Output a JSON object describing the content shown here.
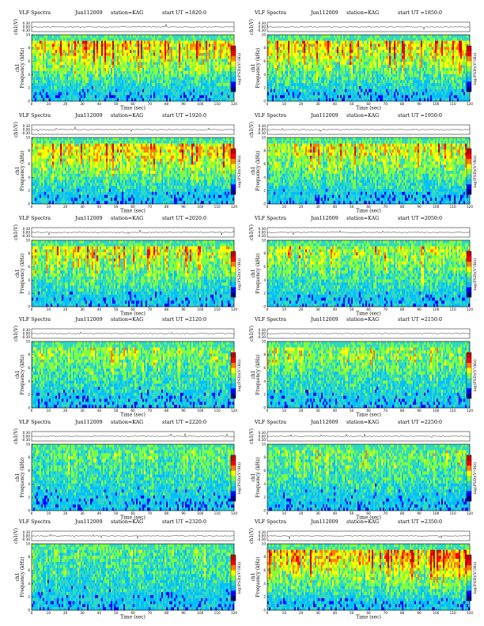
{
  "figure": {
    "title_text": "VLF Spectra",
    "station_text": "station=KAG",
    "start_prefix": "start  UT  =",
    "xlabel": "Time  (sec)",
    "ylabel_channel": "ch1",
    "ylabel_frequency": "Frequency  (kHz)",
    "ylabel_amplitude": "ch1(V)",
    "colorbar_label": "log(PSD)(V²/Hz)",
    "amp_ticks": [
      "0.30",
      "0.00",
      "-0.30"
    ],
    "freq_ticks": [
      "0",
      "2",
      "4",
      "6",
      "8",
      "10"
    ],
    "time_ticks": [
      "0",
      "10",
      "20",
      "30",
      "40",
      "50",
      "60",
      "70",
      "80",
      "90",
      "100",
      "110",
      "120"
    ],
    "colormap": [
      "#000080",
      "#0000ff",
      "#00bfff",
      "#30d8c0",
      "#7fff40",
      "#ffff00",
      "#ff8000",
      "#ff0000",
      "#c00000"
    ],
    "background_band_color": "#00ccff"
  },
  "chart_data": [
    {
      "type": "heatmap",
      "title": "VLF Spectra",
      "date": "Jun112009",
      "station": "KAG",
      "start_ut": "1820:0",
      "xlabel": "Time (sec)",
      "ylabel": "Frequency (kHz)",
      "xlim": [
        0,
        120
      ],
      "ylim": [
        0,
        10
      ],
      "amp_ylim": [
        -0.3,
        0.3
      ],
      "activity_level": 0.72
    },
    {
      "type": "heatmap",
      "title": "VLF Spectra",
      "date": "Jun112009",
      "station": "KAG",
      "start_ut": "1850:0",
      "xlabel": "Time (sec)",
      "ylabel": "Frequency (kHz)",
      "xlim": [
        0,
        120
      ],
      "ylim": [
        0,
        10
      ],
      "amp_ylim": [
        -0.3,
        0.3
      ],
      "activity_level": 0.7
    },
    {
      "type": "heatmap",
      "title": "VLF Spectra",
      "date": "Jun112009",
      "station": "KAG",
      "start_ut": "1920:0",
      "xlabel": "Time (sec)",
      "ylabel": "Frequency (kHz)",
      "xlim": [
        0,
        120
      ],
      "ylim": [
        0,
        10
      ],
      "amp_ylim": [
        -0.3,
        0.3
      ],
      "activity_level": 0.68
    },
    {
      "type": "heatmap",
      "title": "VLF Spectra",
      "date": "Jun112009",
      "station": "KAG",
      "start_ut": "1950:0",
      "xlabel": "Time (sec)",
      "ylabel": "Frequency (kHz)",
      "xlim": [
        0,
        120
      ],
      "ylim": [
        0,
        10
      ],
      "amp_ylim": [
        -0.3,
        0.3
      ],
      "activity_level": 0.6
    },
    {
      "type": "heatmap",
      "title": "VLF Spectra",
      "date": "Jun112009",
      "station": "KAG",
      "start_ut": "2020:0",
      "xlabel": "Time (sec)",
      "ylabel": "Frequency (kHz)",
      "xlim": [
        0,
        120
      ],
      "ylim": [
        0,
        10
      ],
      "amp_ylim": [
        -0.3,
        0.3
      ],
      "activity_level": 0.55
    },
    {
      "type": "heatmap",
      "title": "VLF Spectra",
      "date": "Jun112009",
      "station": "KAG",
      "start_ut": "2050:0",
      "xlabel": "Time (sec)",
      "ylabel": "Frequency (kHz)",
      "xlim": [
        0,
        120
      ],
      "ylim": [
        0,
        10
      ],
      "amp_ylim": [
        -0.3,
        0.3
      ],
      "activity_level": 0.5
    },
    {
      "type": "heatmap",
      "title": "VLF Spectra",
      "date": "Jun112009",
      "station": "KAG",
      "start_ut": "2120:0",
      "xlabel": "Time (sec)",
      "ylabel": "Frequency (kHz)",
      "xlim": [
        0,
        120
      ],
      "ylim": [
        0,
        10
      ],
      "amp_ylim": [
        -0.3,
        0.3
      ],
      "activity_level": 0.42
    },
    {
      "type": "heatmap",
      "title": "VLF Spectra",
      "date": "Jun112009",
      "station": "KAG",
      "start_ut": "2150:0",
      "xlabel": "Time (sec)",
      "ylabel": "Frequency (kHz)",
      "xlim": [
        0,
        120
      ],
      "ylim": [
        0,
        10
      ],
      "amp_ylim": [
        -0.3,
        0.3
      ],
      "activity_level": 0.4
    },
    {
      "type": "heatmap",
      "title": "VLF Spectra",
      "date": "Jun112009",
      "station": "KAG",
      "start_ut": "2220:0",
      "xlabel": "Time (sec)",
      "ylabel": "Frequency (kHz)",
      "xlim": [
        0,
        120
      ],
      "ylim": [
        0,
        10
      ],
      "amp_ylim": [
        -0.3,
        0.3
      ],
      "activity_level": 0.3
    },
    {
      "type": "heatmap",
      "title": "VLF Spectra",
      "date": "Jun112009",
      "station": "KAG",
      "start_ut": "2250:0",
      "xlabel": "Time (sec)",
      "ylabel": "Frequency (kHz)",
      "xlim": [
        0,
        120
      ],
      "ylim": [
        0,
        10
      ],
      "amp_ylim": [
        -0.3,
        0.3
      ],
      "activity_level": 0.35
    },
    {
      "type": "heatmap",
      "title": "VLF Spectra",
      "date": "Jun112009",
      "station": "KAG",
      "start_ut": "2320:0",
      "xlabel": "Time (sec)",
      "ylabel": "Frequency (kHz)",
      "xlim": [
        0,
        120
      ],
      "ylim": [
        0,
        10
      ],
      "amp_ylim": [
        -0.3,
        0.3
      ],
      "activity_level": 0.3
    },
    {
      "type": "heatmap",
      "title": "VLF Spectra",
      "date": "Jun112009",
      "station": "KAG",
      "start_ut": "2350:0",
      "xlabel": "Time (sec)",
      "ylabel": "Frequency (kHz)",
      "xlim": [
        0,
        120
      ],
      "ylim": [
        0,
        10
      ],
      "amp_ylim": [
        -0.3,
        0.3
      ],
      "activity_level": 0.8
    }
  ]
}
